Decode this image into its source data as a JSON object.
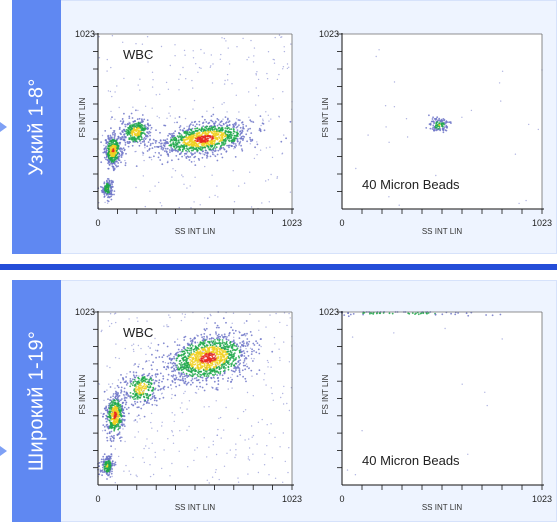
{
  "panels": [
    {
      "side_label": "Узкий 1-8°",
      "plots": [
        {
          "annotation": "WBC",
          "xlabel": "SS INT LIN",
          "ylabel": "FS INT LIN",
          "x_min_label": "0",
          "x_max_label": "1023",
          "y_max_label": "1023"
        },
        {
          "annotation": "40 Micron Beads",
          "xlabel": "SS INT LIN",
          "ylabel": "FS INT LIN",
          "x_min_label": "0",
          "x_max_label": "1023",
          "y_max_label": "1023"
        }
      ]
    },
    {
      "side_label": "Широкий 1-19°",
      "plots": [
        {
          "annotation": "WBC",
          "xlabel": "SS INT LIN",
          "ylabel": "FS INT LIN",
          "x_min_label": "0",
          "x_max_label": "1023",
          "y_max_label": "1023"
        },
        {
          "annotation": "40 Micron Beads",
          "xlabel": "SS INT LIN",
          "ylabel": "FS INT LIN",
          "x_min_label": "0",
          "x_max_label": "1023",
          "y_max_label": "1023"
        }
      ]
    }
  ],
  "colors": {
    "panel_accent": "#5f88f2",
    "divider": "#244dd8",
    "density_low": "#6f76c8",
    "density_mid": "#1fa84a",
    "density_high": "#f0d021",
    "density_peak": "#e8281e"
  },
  "chart_data": [
    {
      "type": "scatter",
      "title": "",
      "annotation": "WBC",
      "xlabel": "SS INT LIN",
      "ylabel": "FS INT LIN",
      "xlim": [
        0,
        1023
      ],
      "ylim": [
        0,
        1023
      ],
      "clusters": [
        {
          "x": 50,
          "y": 120,
          "sx": 14,
          "sy": 25,
          "n": 160
        },
        {
          "x": 80,
          "y": 340,
          "sx": 22,
          "sy": 45,
          "n": 420
        },
        {
          "x": 200,
          "y": 450,
          "sx": 40,
          "sy": 40,
          "n": 320
        },
        {
          "x": 560,
          "y": 410,
          "sx": 120,
          "sy": 45,
          "n": 1100
        }
      ],
      "noise": 260
    },
    {
      "type": "scatter",
      "title": "",
      "annotation": "40 Micron Beads",
      "xlabel": "SS INT LIN",
      "ylabel": "FS INT LIN",
      "xlim": [
        0,
        1023
      ],
      "ylim": [
        0,
        1023
      ],
      "clusters": [
        {
          "x": 500,
          "y": 490,
          "sx": 25,
          "sy": 20,
          "n": 120
        }
      ],
      "noise": 25
    },
    {
      "type": "scatter",
      "title": "",
      "annotation": "WBC",
      "xlabel": "SS INT LIN",
      "ylabel": "FS INT LIN",
      "xlim": [
        0,
        1023
      ],
      "ylim": [
        0,
        1023
      ],
      "clusters": [
        {
          "x": 50,
          "y": 110,
          "sx": 16,
          "sy": 30,
          "n": 180
        },
        {
          "x": 90,
          "y": 410,
          "sx": 25,
          "sy": 65,
          "n": 450
        },
        {
          "x": 230,
          "y": 570,
          "sx": 50,
          "sy": 55,
          "n": 300
        },
        {
          "x": 580,
          "y": 750,
          "sx": 110,
          "sy": 70,
          "n": 1200
        }
      ],
      "noise": 320
    },
    {
      "type": "scatter",
      "title": "",
      "annotation": "40 Micron Beads",
      "xlabel": "SS INT LIN",
      "ylabel": "FS INT LIN",
      "xlim": [
        0,
        1023
      ],
      "ylim": [
        0,
        1023
      ],
      "clusters": [
        {
          "x": 300,
          "y": 1015,
          "sx": 220,
          "sy": 8,
          "n": 70
        }
      ],
      "noise": 12
    }
  ]
}
